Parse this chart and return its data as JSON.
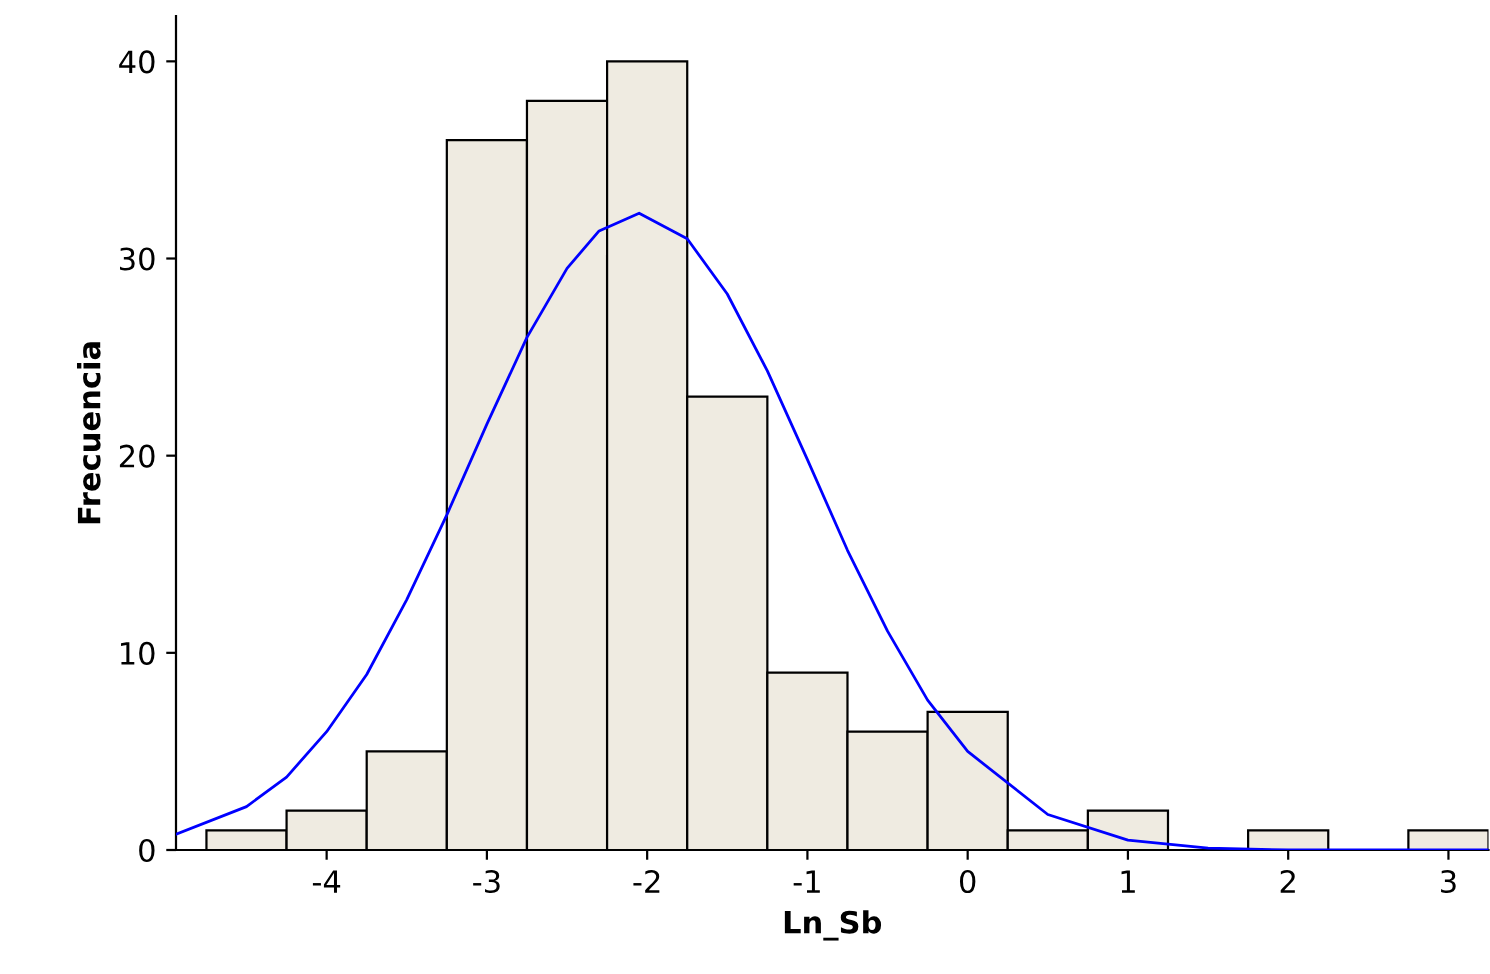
{
  "chart_data": {
    "type": "histogram",
    "xlabel": "Ln_Sb",
    "ylabel": "Frecuencia",
    "bins": [
      -4.75,
      -4.25,
      -3.75,
      -3.25,
      -2.75,
      -2.25,
      -1.75,
      -1.25,
      -0.75,
      -0.25,
      0.25,
      0.75,
      1.25,
      1.75,
      2.25,
      2.75,
      3.25
    ],
    "series": [
      {
        "color": "#efebe1",
        "values": [
          1,
          2,
          5,
          36,
          38,
          40,
          23,
          9,
          6,
          7,
          1,
          2,
          0,
          1,
          0,
          1
        ]
      },
      {
        "type": "line",
        "color": "#0000ff",
        "x": [
          -4.94,
          -4.5,
          -4.25,
          -4.0,
          -3.75,
          -3.5,
          -3.25,
          -3.0,
          -2.75,
          -2.5,
          -2.3,
          -2.05,
          -1.75,
          -1.5,
          -1.25,
          -1.0,
          -0.75,
          -0.5,
          -0.25,
          0,
          0.5,
          1.0,
          1.5,
          2.0,
          2.5,
          3.25
        ],
        "values": [
          0.8,
          2.2,
          3.7,
          6.0,
          8.9,
          12.7,
          17.0,
          21.6,
          26.0,
          29.5,
          31.4,
          32.3,
          31.0,
          28.2,
          24.3,
          19.8,
          15.2,
          11.1,
          7.6,
          5.0,
          1.8,
          0.5,
          0.1,
          0,
          0,
          0
        ]
      }
    ],
    "xlim": [
      -4.94,
      3.25
    ],
    "ylim": [
      0,
      42.3
    ],
    "xticks": [
      -4,
      -3,
      -2,
      -1,
      0,
      1,
      2,
      3
    ],
    "yticks": [
      0,
      10,
      20,
      30,
      40
    ],
    "grid": false
  }
}
